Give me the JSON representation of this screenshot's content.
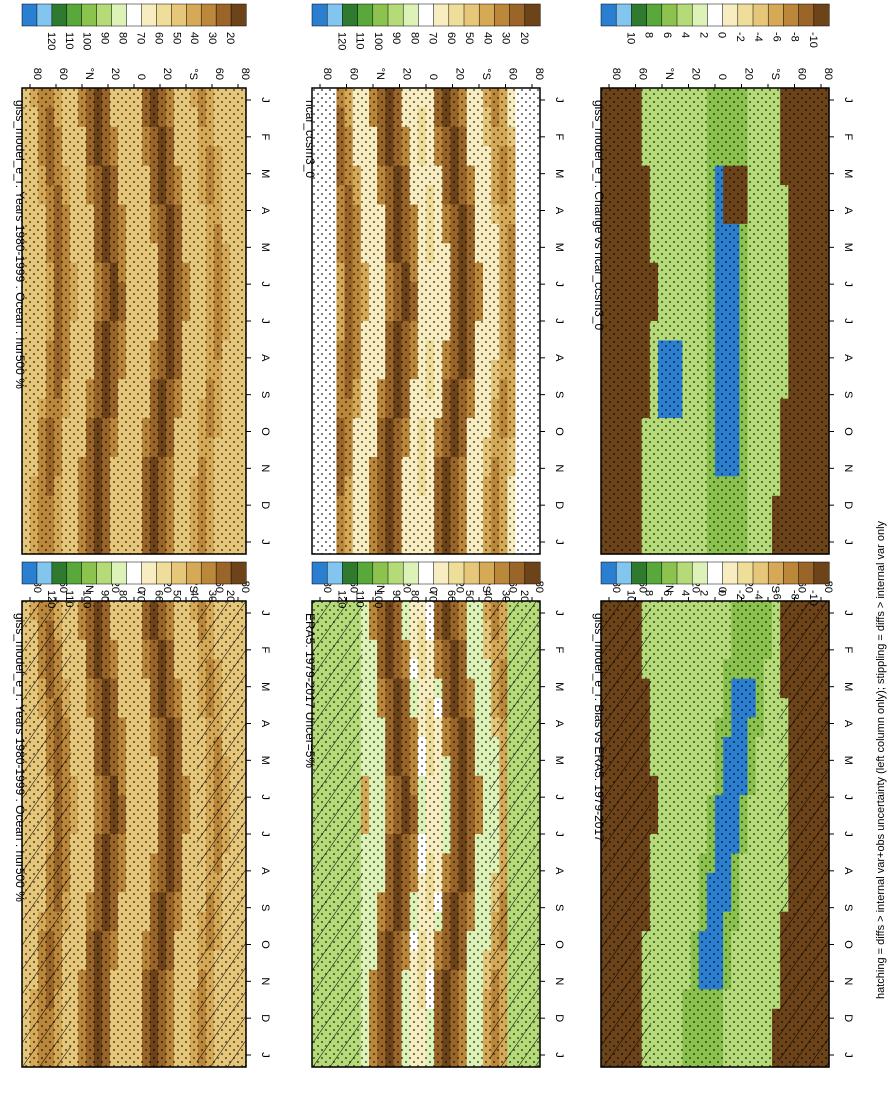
{
  "figure": {
    "footnote": "hatching = diffs > internal var+obs uncertainty (left column only); stippling = diffs > internal var only"
  },
  "chart_data": [
    {
      "type": "heatmap",
      "id": "p1",
      "title": "giss_model_e_r: Years 1980-1999 : Ocean : hur500 %",
      "x": [
        "J",
        "F",
        "M",
        "A",
        "M",
        "J",
        "J",
        "A",
        "S",
        "O",
        "N",
        "D",
        "J"
      ],
      "y": [
        "80",
        "60",
        "°N",
        "20",
        "0",
        "20",
        "°S",
        "60",
        "80"
      ],
      "colorbar": [
        "120",
        "110",
        "100",
        "90",
        "80",
        "70",
        "60",
        "50",
        "40",
        "30",
        "20"
      ],
      "hatching": true,
      "stippling": true
    },
    {
      "type": "heatmap",
      "id": "p2",
      "title": "giss_model_e_r: Years 1980-1999 : Ocean : hur500 %",
      "x": [
        "J",
        "F",
        "M",
        "A",
        "M",
        "J",
        "J",
        "A",
        "S",
        "O",
        "N",
        "D",
        "J"
      ],
      "y": [
        "80",
        "60",
        "°N",
        "20",
        "0",
        "20",
        "°S",
        "60",
        "80"
      ],
      "colorbar": [
        "120",
        "110",
        "100",
        "90",
        "80",
        "70",
        "60",
        "50",
        "40",
        "30",
        "20"
      ],
      "hatching": false,
      "stippling": true
    },
    {
      "type": "heatmap",
      "id": "p3",
      "title": "ERA5: 1979-2017 Uncer=5%",
      "x": [
        "J",
        "F",
        "M",
        "A",
        "M",
        "J",
        "J",
        "A",
        "S",
        "O",
        "N",
        "D",
        "J"
      ],
      "y": [
        "80",
        "60",
        "°N",
        "20",
        "0",
        "20",
        "°S",
        "60",
        "80"
      ],
      "colorbar": [
        "120",
        "110",
        "100",
        "90",
        "80",
        "70",
        "60",
        "50",
        "40",
        "30",
        "20"
      ],
      "hatching": true,
      "stippling": true
    },
    {
      "type": "heatmap",
      "id": "p4",
      "title": "ncar_ccsm3_0",
      "x": [
        "J",
        "F",
        "M",
        "A",
        "M",
        "J",
        "J",
        "A",
        "S",
        "O",
        "N",
        "D",
        "J"
      ],
      "y": [
        "80",
        "60",
        "°N",
        "20",
        "0",
        "20",
        "°S",
        "60",
        "80"
      ],
      "colorbar": [
        "120",
        "110",
        "100",
        "90",
        "80",
        "70",
        "60",
        "50",
        "40",
        "30",
        "20"
      ],
      "hatching": false,
      "stippling": true
    },
    {
      "type": "heatmap",
      "id": "p5",
      "title": "giss_model_e_r: Bias vs ERA5: 1979-2017",
      "x": [
        "J",
        "F",
        "M",
        "A",
        "M",
        "J",
        "J",
        "A",
        "S",
        "O",
        "N",
        "D",
        "J"
      ],
      "y": [
        "80",
        "60",
        "°N",
        "20",
        "0",
        "20",
        "°S",
        "60",
        "80"
      ],
      "colorbar": [
        "10",
        "8",
        "6",
        "4",
        "2",
        "0",
        "-2",
        "-4",
        "-6",
        "-8",
        "-10"
      ],
      "hatching": true,
      "stippling": true
    },
    {
      "type": "heatmap",
      "id": "p6",
      "title": "giss_model_e_r: Change vs ncar_ccsm3_0",
      "x": [
        "J",
        "F",
        "M",
        "A",
        "M",
        "J",
        "J",
        "A",
        "S",
        "O",
        "N",
        "D",
        "J"
      ],
      "y": [
        "80",
        "60",
        "°N",
        "20",
        "0",
        "20",
        "°S",
        "60",
        "80"
      ],
      "colorbar": [
        "10",
        "8",
        "6",
        "4",
        "2",
        "0",
        "-2",
        "-4",
        "-6",
        "-8",
        "-10"
      ],
      "hatching": false,
      "stippling": true
    }
  ]
}
